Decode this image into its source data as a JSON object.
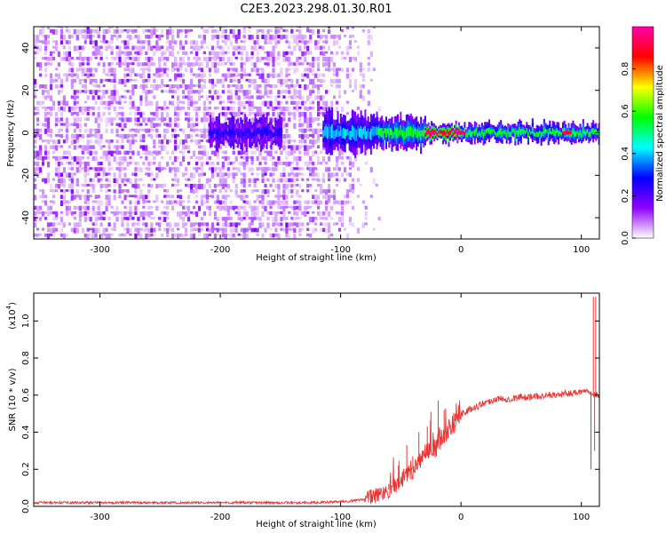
{
  "title": "C2E3.2023.298.01.30.R01",
  "chart_data": [
    {
      "type": "heatmap",
      "xlabel": "Height of straight line (km)",
      "ylabel": "Frequency (Hz)",
      "xlim": [
        -355,
        115
      ],
      "ylim": [
        -50,
        50
      ],
      "x_ticks": [
        -300,
        -200,
        -100,
        0,
        100
      ],
      "y_ticks": [
        -40,
        -20,
        0,
        20,
        40
      ],
      "noise_region_x": [
        -355,
        -68
      ],
      "signal_band": {
        "center_hz": 0,
        "segments": [
          {
            "x": [
              -210,
              -150
            ],
            "halfwidth_hz": 4,
            "amplitude": 0.25
          },
          {
            "x": [
              -115,
              -70
            ],
            "halfwidth_hz": 5,
            "amplitude": 0.4
          },
          {
            "x": [
              -70,
              -30
            ],
            "halfwidth_hz": 4,
            "amplitude": 0.55
          },
          {
            "x": [
              -30,
              0
            ],
            "halfwidth_hz": 2.5,
            "amplitude": 0.9
          },
          {
            "x": [
              0,
              115
            ],
            "halfwidth_hz": 2.5,
            "amplitude": 0.55
          }
        ],
        "peaks": [
          {
            "x": -25,
            "amplitude": 0.95
          },
          {
            "x": 0,
            "amplitude": 0.95
          },
          {
            "x": 88,
            "amplitude": 0.92
          }
        ]
      },
      "colorbar": {
        "label": "Normalized spectral amplitude",
        "range": [
          0,
          1
        ],
        "ticks": [
          "0.0",
          "0.2",
          "0.4",
          "0.6",
          "0.8"
        ],
        "colors": [
          "#ffffff",
          "#9000ff",
          "#0000ff",
          "#00ffff",
          "#00ff00",
          "#ffff00",
          "#ff0000",
          "#ff00aa"
        ]
      }
    },
    {
      "type": "line",
      "xlabel": "Height of straight line (km)",
      "ylabel": "SNR (10 * v/v)",
      "y_scale_label": "(x10",
      "y_scale_exp": "4",
      "y_scale_close": ")",
      "xlim": [
        -355,
        115
      ],
      "ylim": [
        0,
        1.15
      ],
      "x_ticks": [
        -300,
        -200,
        -100,
        0,
        100
      ],
      "y_ticks": [
        "0.0",
        "0.2",
        "0.4",
        "0.6",
        "0.8",
        "1.0"
      ],
      "series": [
        {
          "color": "#ee3333",
          "x": [
            -355,
            -300,
            -250,
            -200,
            -150,
            -120,
            -100,
            -90,
            -80,
            -70,
            -60,
            -50,
            -45,
            -40,
            -35,
            -30,
            -25,
            -20,
            -15,
            -10,
            -5,
            0,
            10,
            20,
            30,
            40,
            50,
            60,
            70,
            80,
            90,
            100,
            105,
            108,
            110,
            112,
            115
          ],
          "y": [
            0.02,
            0.02,
            0.02,
            0.02,
            0.02,
            0.02,
            0.025,
            0.03,
            0.04,
            0.06,
            0.09,
            0.14,
            0.18,
            0.2,
            0.24,
            0.27,
            0.3,
            0.33,
            0.38,
            0.42,
            0.46,
            0.5,
            0.53,
            0.56,
            0.58,
            0.58,
            0.59,
            0.59,
            0.6,
            0.6,
            0.61,
            0.62,
            0.63,
            0.62,
            0.6,
            0.6,
            0.6
          ],
          "spikes": [
            {
              "x": -60,
              "y": 0.12
            },
            {
              "x": -52,
              "y": 0.22
            },
            {
              "x": -45,
              "y": 0.33
            },
            {
              "x": -40,
              "y": 0.27
            },
            {
              "x": -35,
              "y": 0.4
            },
            {
              "x": -28,
              "y": 0.43
            },
            {
              "x": -25,
              "y": 0.51
            },
            {
              "x": -19,
              "y": 0.57
            },
            {
              "x": -14,
              "y": 0.52
            },
            {
              "x": -5,
              "y": 0.5
            },
            {
              "x": 5,
              "y": 0.5
            },
            {
              "x": 108,
              "y": 0.2
            },
            {
              "x": 110,
              "y": 1.13
            },
            {
              "x": 111,
              "y": 0.3
            },
            {
              "x": 112,
              "y": 1.13
            }
          ]
        }
      ]
    }
  ]
}
